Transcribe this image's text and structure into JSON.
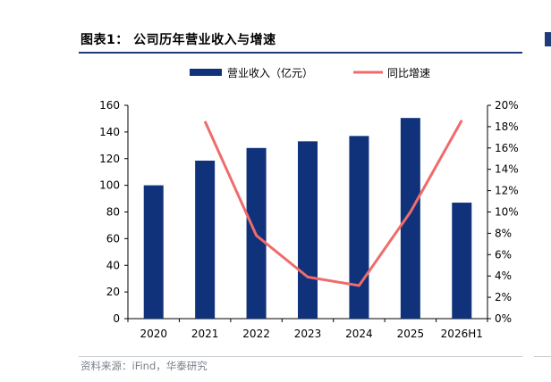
{
  "header": {
    "title": "图表1：  公司历年营业收入与增速"
  },
  "footer": {
    "source": "资料来源：iFind，华泰研究"
  },
  "colors": {
    "bar": "#10327a",
    "line": "#f06b6b",
    "rule": "#1f3b7a"
  },
  "chart_data": {
    "type": "bar",
    "categories": [
      "2020",
      "2021",
      "2022",
      "2023",
      "2024",
      "2025",
      "2026H1"
    ],
    "series": [
      {
        "name": "营业收入（亿元）",
        "type": "bar",
        "axis": "left",
        "values": [
          100,
          118.5,
          128,
          133,
          137,
          150.5,
          87
        ]
      },
      {
        "name": "同比增速",
        "type": "line",
        "axis": "right",
        "values": [
          null,
          18.5,
          7.8,
          3.9,
          3.1,
          10,
          18.6
        ]
      }
    ],
    "left_axis": {
      "min": 0,
      "max": 160,
      "step": 20,
      "ticks": [
        "0",
        "20",
        "40",
        "60",
        "80",
        "100",
        "120",
        "140",
        "160"
      ]
    },
    "right_axis": {
      "min": 0,
      "max": 20,
      "step": 2,
      "ticks": [
        "0%",
        "2%",
        "4%",
        "6%",
        "8%",
        "10%",
        "12%",
        "14%",
        "16%",
        "18%",
        "20%"
      ]
    },
    "legend": {
      "position": "top"
    },
    "grid": false
  }
}
